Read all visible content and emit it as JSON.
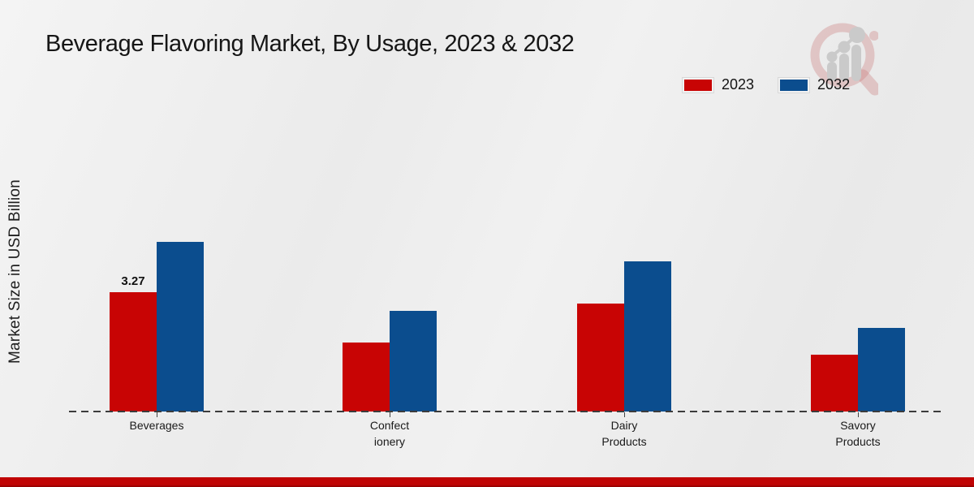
{
  "title": "Beverage Flavoring Market, By Usage, 2023 & 2032",
  "y_axis_label": "Market Size in USD Billion",
  "legend": {
    "items": [
      {
        "label": "2023",
        "color": "#c80404"
      },
      {
        "label": "2032",
        "color": "#0b4d8e"
      }
    ]
  },
  "logo": {
    "name": "market-research-magnifier-watermark"
  },
  "colors": {
    "series_2023": "#c80404",
    "series_2032": "#0b4d8e",
    "footer_band": "#c00404",
    "footer_band_dark": "#8e0000",
    "baseline": "#3c3c3c"
  },
  "chart_data": {
    "type": "bar",
    "title": "Beverage Flavoring Market, By Usage, 2023 & 2032",
    "xlabel": "",
    "ylabel": "Market Size in USD Billion",
    "categories": [
      "Beverages",
      "Confectionery",
      "Dairy Products",
      "Savory Products"
    ],
    "category_display_lines": [
      [
        "Beverages"
      ],
      [
        "Confect",
        "ionery"
      ],
      [
        "Dairy",
        "Products"
      ],
      [
        "Savory",
        "Products"
      ]
    ],
    "series": [
      {
        "name": "2023",
        "color": "#c80404",
        "values": [
          3.27,
          1.89,
          2.96,
          1.56
        ]
      },
      {
        "name": "2032",
        "color": "#0b4d8e",
        "values": [
          4.65,
          2.76,
          4.12,
          2.29
        ]
      }
    ],
    "data_labels": [
      {
        "series_index": 0,
        "category_index": 0,
        "text": "3.27"
      }
    ],
    "ylim": [
      0,
      5
    ],
    "grid": false,
    "axis_style": "dashed-baseline-only",
    "legend_position": "top-right"
  }
}
